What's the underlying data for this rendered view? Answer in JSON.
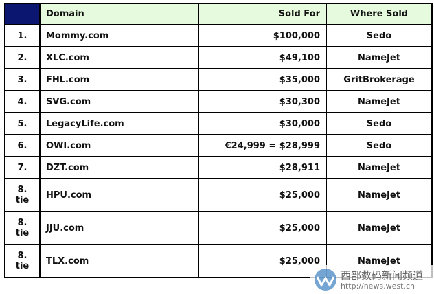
{
  "table": {
    "header": [
      "",
      "Domain",
      "Sold For",
      "Where Sold"
    ],
    "rows": [
      [
        "1.",
        "Mommy.com",
        "$100,000",
        "Sedo"
      ],
      [
        "2.",
        "XLC.com",
        "$49,100",
        "NameJet"
      ],
      [
        "3.",
        "FHL.com",
        "$35,000",
        "GritBrokerage"
      ],
      [
        "4.",
        "SVG.com",
        "$30,300",
        "NameJet"
      ],
      [
        "5.",
        "LegacyLife.com",
        "$30,000",
        "Sedo"
      ],
      [
        "6.",
        "OWI.com",
        "€24,999 = $28,999",
        "Sedo"
      ],
      [
        "7.",
        "DZT.com",
        "$28,911",
        "NameJet"
      ],
      [
        "8. tie",
        "HPU.com",
        "$25,000",
        "NameJet"
      ],
      [
        "8. tie",
        "JJU.com",
        "$25,000",
        "NameJet"
      ],
      [
        "8. tie",
        "TLX.com",
        "$25,000",
        "NameJet"
      ]
    ]
  },
  "watermark": {
    "title": "西部数码新闻频道",
    "url": "http://news.west.cn"
  }
}
